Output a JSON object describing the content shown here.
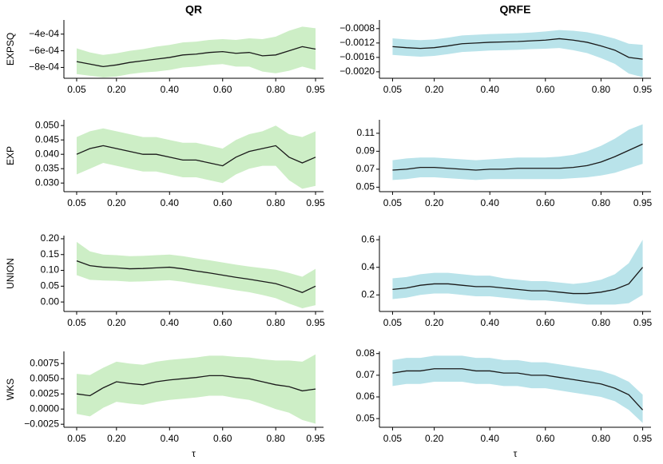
{
  "chart_data": [
    {
      "type": "line",
      "title": "QR",
      "ylabel": "EXPSQ",
      "x": [
        0.05,
        0.1,
        0.15,
        0.2,
        0.25,
        0.3,
        0.35,
        0.4,
        0.45,
        0.5,
        0.55,
        0.6,
        0.65,
        0.7,
        0.75,
        0.8,
        0.85,
        0.9,
        0.95
      ],
      "series": [
        {
          "color": "#1a1a1a",
          "band_color": "#cdeec6",
          "values": [
            -0.00073,
            -0.00076,
            -0.00079,
            -0.00077,
            -0.00074,
            -0.00072,
            -0.0007,
            -0.00068,
            -0.00065,
            -0.00064,
            -0.00062,
            -0.00061,
            -0.00063,
            -0.00062,
            -0.00066,
            -0.00065,
            -0.0006,
            -0.00055,
            -0.00058
          ],
          "upper": [
            -0.00057,
            -0.00062,
            -0.00065,
            -0.00063,
            -0.0006,
            -0.00058,
            -0.00055,
            -0.00053,
            -0.0005,
            -0.00049,
            -0.00047,
            -0.00046,
            -0.00047,
            -0.00045,
            -0.00046,
            -0.00043,
            -0.00036,
            -0.00031,
            -0.00033
          ],
          "lower": [
            -0.00088,
            -0.0009,
            -0.00092,
            -0.00091,
            -0.00088,
            -0.00086,
            -0.00085,
            -0.00083,
            -0.0008,
            -0.00079,
            -0.00077,
            -0.00076,
            -0.00079,
            -0.00079,
            -0.00085,
            -0.00087,
            -0.00084,
            -0.00079,
            -0.00083
          ]
        }
      ],
      "xlim": [
        0.02,
        0.98
      ],
      "xticks": [
        0.05,
        {
          "value": 0.2,
          "label": "0.20"
        },
        {
          "value": 0.4,
          "label": "0.40"
        },
        {
          "value": 0.6,
          "label": "0.60"
        },
        {
          "value": 0.8,
          "label": "0.80"
        },
        0.95
      ],
      "ylim": [
        -0.00093,
        -0.00023
      ],
      "yticks": [
        {
          "value": -0.0004,
          "label": "−4e-04"
        },
        {
          "value": -0.0006,
          "label": "−6e-04"
        },
        {
          "value": -0.0008,
          "label": "−8e-04"
        }
      ]
    },
    {
      "type": "line",
      "title": "QRFE",
      "x": [
        0.05,
        0.1,
        0.15,
        0.2,
        0.25,
        0.3,
        0.35,
        0.4,
        0.45,
        0.5,
        0.55,
        0.6,
        0.65,
        0.7,
        0.75,
        0.8,
        0.85,
        0.9,
        0.95
      ],
      "series": [
        {
          "color": "#1a1a1a",
          "band_color": "#b9e3ea",
          "values": [
            -0.0013,
            -0.00133,
            -0.00135,
            -0.00133,
            -0.00128,
            -0.00122,
            -0.0012,
            -0.00118,
            -0.00117,
            -0.00116,
            -0.00114,
            -0.00112,
            -0.00108,
            -0.00112,
            -0.00118,
            -0.00128,
            -0.0014,
            -0.0016,
            -0.00165
          ],
          "upper": [
            -0.00107,
            -0.0011,
            -0.00112,
            -0.0011,
            -0.00105,
            -0.00099,
            -0.00097,
            -0.00095,
            -0.00094,
            -0.00093,
            -0.00091,
            -0.00088,
            -0.00084,
            -0.00086,
            -0.0009,
            -0.00098,
            -0.00108,
            -0.00122,
            -0.00125
          ],
          "lower": [
            -0.00153,
            -0.00156,
            -0.00158,
            -0.00156,
            -0.00151,
            -0.00145,
            -0.00143,
            -0.00141,
            -0.0014,
            -0.00139,
            -0.00137,
            -0.00136,
            -0.00134,
            -0.0014,
            -0.00148,
            -0.00162,
            -0.00178,
            -0.00205,
            -0.00215
          ]
        }
      ],
      "xlim": [
        0.02,
        0.98
      ],
      "xticks": [
        0.05,
        {
          "value": 0.2,
          "label": "0.20"
        },
        {
          "value": 0.4,
          "label": "0.40"
        },
        {
          "value": 0.6,
          "label": "0.60"
        },
        {
          "value": 0.8,
          "label": "0.80"
        },
        0.95
      ],
      "ylim": [
        -0.00218,
        -0.00056
      ],
      "yticks": [
        {
          "value": -0.0008,
          "label": "−0.0008"
        },
        {
          "value": -0.0012,
          "label": "−0.0012"
        },
        {
          "value": -0.0016,
          "label": "−0.0016"
        },
        {
          "value": -0.002,
          "label": "−0.0020"
        }
      ]
    },
    {
      "type": "line",
      "ylabel": "EXP",
      "x": [
        0.05,
        0.1,
        0.15,
        0.2,
        0.25,
        0.3,
        0.35,
        0.4,
        0.45,
        0.5,
        0.55,
        0.6,
        0.65,
        0.7,
        0.75,
        0.8,
        0.85,
        0.9,
        0.95
      ],
      "series": [
        {
          "color": "#1a1a1a",
          "band_color": "#cdeec6",
          "values": [
            0.04,
            0.042,
            0.043,
            0.042,
            0.041,
            0.04,
            0.04,
            0.039,
            0.038,
            0.038,
            0.037,
            0.036,
            0.039,
            0.041,
            0.042,
            0.043,
            0.039,
            0.037,
            0.039
          ],
          "upper": [
            0.046,
            0.048,
            0.049,
            0.048,
            0.047,
            0.046,
            0.046,
            0.045,
            0.044,
            0.044,
            0.043,
            0.042,
            0.045,
            0.047,
            0.048,
            0.05,
            0.047,
            0.046,
            0.048
          ],
          "lower": [
            0.033,
            0.035,
            0.037,
            0.036,
            0.035,
            0.034,
            0.034,
            0.033,
            0.032,
            0.032,
            0.031,
            0.03,
            0.033,
            0.035,
            0.036,
            0.036,
            0.031,
            0.028,
            0.029
          ]
        }
      ],
      "xlim": [
        0.02,
        0.98
      ],
      "xticks": [
        0.05,
        {
          "value": 0.2,
          "label": "0.20"
        },
        {
          "value": 0.4,
          "label": "0.40"
        },
        {
          "value": 0.6,
          "label": "0.60"
        },
        {
          "value": 0.8,
          "label": "0.80"
        },
        0.95
      ],
      "ylim": [
        0.027,
        0.052
      ],
      "yticks": [
        {
          "value": 0.05,
          "label": "0.050"
        },
        0.045,
        {
          "value": 0.04,
          "label": "0.040"
        },
        0.035,
        {
          "value": 0.03,
          "label": "0.030"
        }
      ]
    },
    {
      "type": "line",
      "x": [
        0.05,
        0.1,
        0.15,
        0.2,
        0.25,
        0.3,
        0.35,
        0.4,
        0.45,
        0.5,
        0.55,
        0.6,
        0.65,
        0.7,
        0.75,
        0.8,
        0.85,
        0.9,
        0.95
      ],
      "series": [
        {
          "color": "#1a1a1a",
          "band_color": "#b9e3ea",
          "values": [
            0.069,
            0.07,
            0.072,
            0.072,
            0.071,
            0.07,
            0.069,
            0.07,
            0.07,
            0.071,
            0.071,
            0.071,
            0.071,
            0.072,
            0.074,
            0.078,
            0.084,
            0.091,
            0.098
          ],
          "upper": [
            0.08,
            0.082,
            0.083,
            0.083,
            0.082,
            0.081,
            0.08,
            0.081,
            0.082,
            0.083,
            0.083,
            0.083,
            0.084,
            0.086,
            0.09,
            0.096,
            0.104,
            0.114,
            0.12
          ],
          "lower": [
            0.058,
            0.059,
            0.061,
            0.061,
            0.06,
            0.059,
            0.058,
            0.059,
            0.059,
            0.059,
            0.059,
            0.059,
            0.059,
            0.06,
            0.061,
            0.063,
            0.066,
            0.071,
            0.076
          ]
        }
      ],
      "xlim": [
        0.02,
        0.98
      ],
      "xticks": [
        0.05,
        {
          "value": 0.2,
          "label": "0.20"
        },
        {
          "value": 0.4,
          "label": "0.40"
        },
        {
          "value": 0.6,
          "label": "0.60"
        },
        {
          "value": 0.8,
          "label": "0.80"
        },
        0.95
      ],
      "ylim": [
        0.045,
        0.125
      ],
      "yticks": [
        0.05,
        0.07,
        0.09,
        0.11
      ]
    },
    {
      "type": "line",
      "ylabel": "UNION",
      "x": [
        0.05,
        0.1,
        0.15,
        0.2,
        0.25,
        0.3,
        0.35,
        0.4,
        0.45,
        0.5,
        0.55,
        0.6,
        0.65,
        0.7,
        0.75,
        0.8,
        0.85,
        0.9,
        0.95
      ],
      "series": [
        {
          "color": "#1a1a1a",
          "band_color": "#cdeec6",
          "values": [
            0.13,
            0.115,
            0.11,
            0.108,
            0.105,
            0.106,
            0.108,
            0.11,
            0.105,
            0.098,
            0.092,
            0.085,
            0.078,
            0.072,
            0.065,
            0.058,
            0.045,
            0.03,
            0.05
          ],
          "upper": [
            0.19,
            0.16,
            0.15,
            0.148,
            0.145,
            0.146,
            0.148,
            0.15,
            0.145,
            0.138,
            0.132,
            0.125,
            0.118,
            0.112,
            0.107,
            0.102,
            0.092,
            0.08,
            0.105
          ],
          "lower": [
            0.085,
            0.07,
            0.068,
            0.067,
            0.064,
            0.065,
            0.067,
            0.069,
            0.064,
            0.057,
            0.051,
            0.044,
            0.037,
            0.031,
            0.022,
            0.012,
            -0.005,
            -0.02,
            -0.01
          ]
        }
      ],
      "xlim": [
        0.02,
        0.98
      ],
      "xticks": [
        0.05,
        {
          "value": 0.2,
          "label": "0.20"
        },
        {
          "value": 0.4,
          "label": "0.40"
        },
        {
          "value": 0.6,
          "label": "0.60"
        },
        {
          "value": 0.8,
          "label": "0.80"
        },
        0.95
      ],
      "ylim": [
        -0.03,
        0.21
      ],
      "yticks": [
        {
          "value": 0.2,
          "label": "0.20"
        },
        0.15,
        {
          "value": 0.1,
          "label": "0.10"
        },
        0.05,
        {
          "value": 0,
          "label": "0.00"
        }
      ]
    },
    {
      "type": "line",
      "x": [
        0.05,
        0.1,
        0.15,
        0.2,
        0.25,
        0.3,
        0.35,
        0.4,
        0.45,
        0.5,
        0.55,
        0.6,
        0.65,
        0.7,
        0.75,
        0.8,
        0.85,
        0.9,
        0.95
      ],
      "series": [
        {
          "color": "#1a1a1a",
          "band_color": "#b9e3ea",
          "values": [
            0.24,
            0.25,
            0.27,
            0.28,
            0.28,
            0.27,
            0.26,
            0.26,
            0.25,
            0.24,
            0.23,
            0.23,
            0.22,
            0.21,
            0.21,
            0.22,
            0.24,
            0.28,
            0.4
          ],
          "upper": [
            0.32,
            0.33,
            0.35,
            0.36,
            0.36,
            0.35,
            0.34,
            0.34,
            0.32,
            0.31,
            0.3,
            0.3,
            0.29,
            0.28,
            0.29,
            0.31,
            0.35,
            0.43,
            0.6
          ],
          "lower": [
            0.17,
            0.18,
            0.2,
            0.21,
            0.21,
            0.2,
            0.19,
            0.19,
            0.18,
            0.17,
            0.16,
            0.16,
            0.15,
            0.14,
            0.13,
            0.13,
            0.13,
            0.14,
            0.2
          ]
        }
      ],
      "xlim": [
        0.02,
        0.98
      ],
      "xticks": [
        0.05,
        {
          "value": 0.2,
          "label": "0.20"
        },
        {
          "value": 0.4,
          "label": "0.40"
        },
        {
          "value": 0.6,
          "label": "0.60"
        },
        {
          "value": 0.8,
          "label": "0.80"
        },
        0.95
      ],
      "ylim": [
        0.08,
        0.63
      ],
      "yticks": [
        0.2,
        0.4,
        0.6
      ]
    },
    {
      "type": "line",
      "ylabel": "WKS",
      "xlabel": "τ",
      "x": [
        0.05,
        0.1,
        0.15,
        0.2,
        0.25,
        0.3,
        0.35,
        0.4,
        0.45,
        0.5,
        0.55,
        0.6,
        0.65,
        0.7,
        0.75,
        0.8,
        0.85,
        0.9,
        0.95
      ],
      "series": [
        {
          "color": "#1a1a1a",
          "band_color": "#cdeec6",
          "values": [
            0.0025,
            0.0022,
            0.0035,
            0.0045,
            0.0042,
            0.004,
            0.0045,
            0.0048,
            0.005,
            0.0052,
            0.0055,
            0.0055,
            0.0052,
            0.005,
            0.0045,
            0.004,
            0.0037,
            0.003,
            0.0033
          ],
          "upper": [
            0.0058,
            0.0056,
            0.0068,
            0.0078,
            0.0075,
            0.0073,
            0.0078,
            0.0081,
            0.0083,
            0.0085,
            0.0088,
            0.0088,
            0.0086,
            0.0085,
            0.0082,
            0.008,
            0.008,
            0.0078,
            0.009
          ],
          "lower": [
            -0.0008,
            -0.0012,
            0.0002,
            0.0012,
            0.0009,
            0.0007,
            0.0012,
            0.0015,
            0.0017,
            0.0019,
            0.0022,
            0.0022,
            0.0018,
            0.0015,
            0.0008,
            0.0,
            -0.0006,
            -0.0018,
            -0.0024
          ]
        }
      ],
      "xlim": [
        0.02,
        0.98
      ],
      "xticks": [
        0.05,
        {
          "value": 0.2,
          "label": "0.20"
        },
        {
          "value": 0.4,
          "label": "0.40"
        },
        {
          "value": 0.6,
          "label": "0.60"
        },
        {
          "value": 0.8,
          "label": "0.80"
        },
        0.95
      ],
      "ylim": [
        -0.003,
        0.0095
      ],
      "yticks": [
        0.0075,
        {
          "value": 0.005,
          "label": "0.0050"
        },
        0.0025,
        {
          "value": 0,
          "label": "0.0000"
        },
        {
          "value": -0.0025,
          "label": "−0.0025"
        }
      ]
    },
    {
      "type": "line",
      "xlabel": "τ",
      "x": [
        0.05,
        0.1,
        0.15,
        0.2,
        0.25,
        0.3,
        0.35,
        0.4,
        0.45,
        0.5,
        0.55,
        0.6,
        0.65,
        0.7,
        0.75,
        0.8,
        0.85,
        0.9,
        0.95
      ],
      "series": [
        {
          "color": "#1a1a1a",
          "band_color": "#b9e3ea",
          "values": [
            0.071,
            0.072,
            0.072,
            0.073,
            0.073,
            0.073,
            0.072,
            0.072,
            0.071,
            0.071,
            0.07,
            0.07,
            0.069,
            0.068,
            0.067,
            0.066,
            0.064,
            0.061,
            0.054
          ],
          "upper": [
            0.077,
            0.078,
            0.078,
            0.079,
            0.079,
            0.079,
            0.078,
            0.078,
            0.077,
            0.077,
            0.076,
            0.076,
            0.075,
            0.074,
            0.073,
            0.072,
            0.07,
            0.067,
            0.061
          ],
          "lower": [
            0.065,
            0.066,
            0.066,
            0.067,
            0.067,
            0.067,
            0.066,
            0.066,
            0.065,
            0.065,
            0.064,
            0.064,
            0.063,
            0.062,
            0.061,
            0.06,
            0.058,
            0.054,
            0.048
          ]
        }
      ],
      "xlim": [
        0.02,
        0.98
      ],
      "xticks": [
        0.05,
        {
          "value": 0.2,
          "label": "0.20"
        },
        {
          "value": 0.4,
          "label": "0.40"
        },
        {
          "value": 0.6,
          "label": "0.60"
        },
        {
          "value": 0.8,
          "label": "0.80"
        },
        0.95
      ],
      "ylim": [
        0.046,
        0.081
      ],
      "yticks": [
        0.08,
        0.07,
        0.06,
        0.05
      ]
    }
  ]
}
